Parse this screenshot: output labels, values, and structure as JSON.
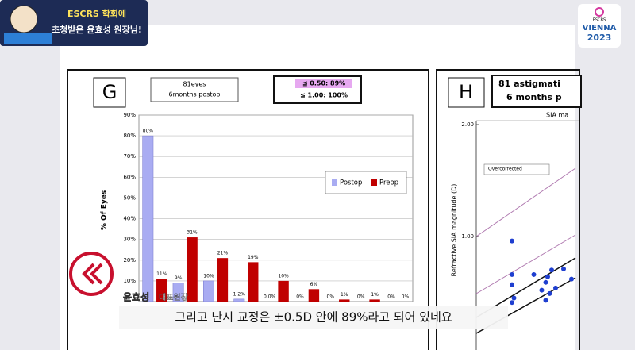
{
  "header": {
    "line1": "ESCRS 학회에",
    "line2": "초청받은 윤효성 원장님!"
  },
  "badge": {
    "org": "ESCRS",
    "city": "VIENNA",
    "year": "2023"
  },
  "speaker": {
    "name": "윤효성",
    "role": "대표원장"
  },
  "subtitle": "그리고 난시 교정은 ±0.5D 안에 89%라고 되어 있네요",
  "chart_data": [
    {
      "type": "bar",
      "panel": "G",
      "info": [
        "81eyes",
        "6months postop"
      ],
      "criteria": [
        "≦ 0.50: 89%",
        "≦ 1.00: 100%"
      ],
      "ylabel": "% Of Eyes",
      "categories": [
        null,
        null,
        null,
        null,
        null,
        null,
        null,
        null,
        null
      ],
      "series": [
        {
          "name": "Postop",
          "color": "#a9acf2",
          "values": [
            80,
            9,
            10,
            1.2,
            0,
            0,
            0,
            0,
            0
          ],
          "value_labels": [
            "80%",
            "9%",
            "10%",
            "1.2%",
            "0.0%",
            "0%",
            "0%",
            "0%",
            "0%"
          ]
        },
        {
          "name": "Preop",
          "color": "#c00000",
          "values": [
            11,
            31,
            21,
            19,
            10,
            6,
            1,
            1,
            0
          ],
          "value_labels": [
            "11%",
            "31%",
            "21%",
            "19%",
            "10%",
            "6%",
            "1%",
            "1%",
            "0%"
          ]
        }
      ],
      "ylim": [
        0,
        90
      ],
      "yticks": [
        {
          "value": 10,
          "label": "10%"
        },
        {
          "value": 20,
          "label": "20%"
        },
        {
          "value": 30,
          "label": "30%"
        },
        {
          "value": 40,
          "label": "40%"
        },
        {
          "value": 50,
          "label": "50%"
        },
        {
          "value": 60,
          "label": "60%"
        },
        {
          "value": 70,
          "label": "70%"
        },
        {
          "value": 80,
          "label": "80%"
        },
        {
          "value": 90,
          "label": "90%"
        }
      ],
      "grid": true,
      "legend": "right"
    },
    {
      "type": "scatter",
      "panel": "H",
      "title": [
        "81 astigmati",
        "6 months p"
      ],
      "subtitle": "SIA ma",
      "ylabel": "Refractive SIA magnitude (D)",
      "annotation": "Overcorrected",
      "x": [
        0.28,
        0.28,
        0.28,
        0.29,
        0.28,
        0.39,
        0.43,
        0.46,
        0.45,
        0.48,
        0.47,
        0.45,
        0.5,
        0.58,
        0.54
      ],
      "values": [
        0.96,
        0.66,
        0.57,
        0.45,
        0.41,
        0.66,
        0.52,
        0.64,
        0.59,
        0.7,
        0.49,
        0.43,
        0.54,
        0.62,
        0.71
      ],
      "color": "#1f3fd0",
      "xlim": [
        0,
        0.6
      ],
      "ylim": [
        0.3,
        2.1
      ],
      "yticks": [
        {
          "value": 1,
          "label": "1.00"
        },
        {
          "value": 2,
          "label": "2.00"
        }
      ]
    }
  ]
}
